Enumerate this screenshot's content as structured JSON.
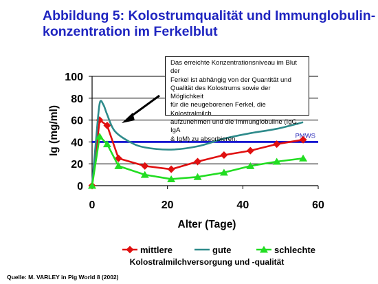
{
  "title": {
    "line1": "Abbildung 5: Kolostrumqualität und Immunglobulin-",
    "line2": "konzentration im Ferkelblut"
  },
  "annotation": {
    "lines": [
      "Das erreichte Konzentrationsniveau im Blut der",
      "Ferkel ist abhängig von der Quantität und",
      "Qualität des Kolostrums sowie der Möglichkeit",
      "für die neugeborenen Ferkel, die Kolostralmilch",
      "aufzunehmen und die Immunglobuline (IgG, IgA",
      "& IgM) zu absorbieren."
    ]
  },
  "source": "Quelle: M. VARLEY  in Pig World 8 (2002)",
  "chart_data": {
    "type": "line",
    "title": "",
    "xlabel": "Alter (Tage)",
    "ylabel": "Ig (mg/ml)",
    "xlim": [
      0,
      60
    ],
    "ylim": [
      0,
      100
    ],
    "x_ticks": [
      "0",
      "20",
      "40",
      "60"
    ],
    "y_ticks": [
      "0",
      "20",
      "40",
      "60",
      "80",
      "100"
    ],
    "grid": "horizontal",
    "legend_title": "Kolostralmilchversorgung und -qualität",
    "legend_position": "bottom",
    "reference_line": {
      "label": "PMWS",
      "y": 40,
      "color": "#0000cc"
    },
    "series": [
      {
        "name": "mittlere",
        "color": "#e01010",
        "marker": "diamond",
        "points": [
          [
            0,
            0
          ],
          [
            2,
            60
          ],
          [
            4,
            55
          ],
          [
            7,
            25
          ],
          [
            14,
            18
          ],
          [
            21,
            15
          ],
          [
            28,
            22
          ],
          [
            35,
            28
          ],
          [
            42,
            32
          ],
          [
            49,
            38
          ],
          [
            56,
            42
          ]
        ]
      },
      {
        "name": "gute",
        "color": "#2e8b8b",
        "marker": "none",
        "points": [
          [
            0,
            0
          ],
          [
            1,
            40
          ],
          [
            2,
            75
          ],
          [
            3,
            74
          ],
          [
            4,
            65
          ],
          [
            6,
            50
          ],
          [
            10,
            40
          ],
          [
            14,
            35
          ],
          [
            21,
            33
          ],
          [
            28,
            36
          ],
          [
            35,
            43
          ],
          [
            42,
            48
          ],
          [
            49,
            52
          ],
          [
            56,
            58
          ]
        ]
      },
      {
        "name": "schlechte",
        "color": "#22dd22",
        "marker": "triangle",
        "points": [
          [
            0,
            0
          ],
          [
            2,
            45
          ],
          [
            4,
            38
          ],
          [
            7,
            18
          ],
          [
            14,
            10
          ],
          [
            21,
            6
          ],
          [
            28,
            8
          ],
          [
            35,
            12
          ],
          [
            42,
            18
          ],
          [
            49,
            22
          ],
          [
            56,
            25
          ]
        ]
      }
    ]
  }
}
